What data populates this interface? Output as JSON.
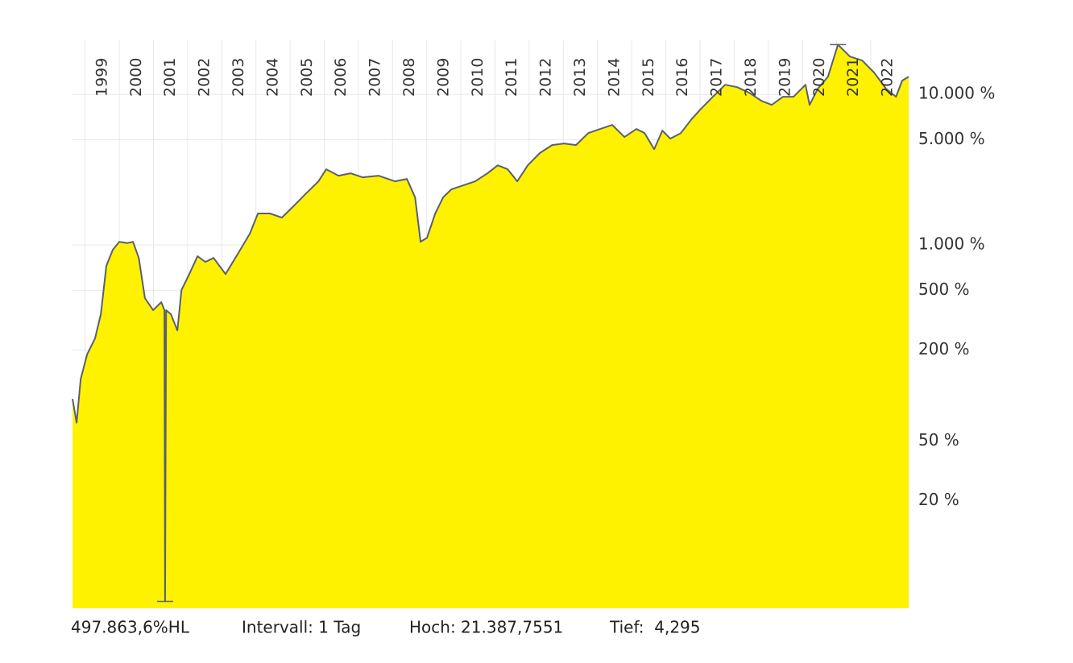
{
  "chart_data": {
    "type": "area",
    "ylog": true,
    "grid": true,
    "color": "#fff200",
    "line_color": "#596070",
    "x": [
      1998.63,
      1998.75,
      1998.87,
      1999.06,
      1999.29,
      1999.46,
      1999.62,
      1999.81,
      2000.0,
      2000.24,
      2000.4,
      2000.57,
      2000.75,
      2000.99,
      2001.23,
      2001.32,
      2001.34,
      2001.37,
      2001.51,
      2001.7,
      2001.82,
      2002.05,
      2002.29,
      2002.52,
      2002.76,
      2003.11,
      2003.47,
      2003.82,
      2004.06,
      2004.41,
      2004.76,
      2005.12,
      2005.47,
      2005.83,
      2006.06,
      2006.42,
      2006.77,
      2007.12,
      2007.59,
      2008.07,
      2008.42,
      2008.66,
      2008.82,
      2009.01,
      2009.25,
      2009.48,
      2009.72,
      2010.07,
      2010.42,
      2010.78,
      2011.08,
      2011.37,
      2011.65,
      2011.96,
      2012.31,
      2012.67,
      2013.02,
      2013.37,
      2013.73,
      2014.08,
      2014.43,
      2014.79,
      2015.14,
      2015.38,
      2015.66,
      2015.9,
      2016.13,
      2016.44,
      2016.75,
      2017.03,
      2017.38,
      2017.74,
      2018.09,
      2018.44,
      2018.8,
      2019.1,
      2019.43,
      2019.74,
      2020.09,
      2020.21,
      2020.45,
      2020.75,
      2021.04,
      2021.39,
      2021.75,
      2022.1,
      2022.45,
      2022.74,
      2022.92,
      2023.11
    ],
    "values": [
      95,
      66,
      129,
      188,
      240,
      347,
      726,
      929,
      1050,
      1030,
      1050,
      820,
      444,
      369,
      417,
      369,
      4.295,
      369,
      347,
      271,
      502,
      641,
      841,
      772,
      820,
      641,
      873,
      1188,
      1618,
      1618,
      1520,
      1828,
      2198,
      2644,
      3184,
      2884,
      2992,
      2812,
      2884,
      2644,
      2745,
      2070,
      1050,
      1117,
      1618,
      2070,
      2339,
      2488,
      2644,
      2992,
      3381,
      3184,
      2644,
      3381,
      4074,
      4603,
      4721,
      4603,
      5535,
      5888,
      6266,
      5210,
      5888,
      5535,
      4325,
      5745,
      5082,
      5535,
      6823,
      8017,
      9638,
      11587,
      11170,
      10256,
      9057,
      8511,
      9638,
      9638,
      11587,
      8511,
      10890,
      13120,
      21387.7551,
      17830,
      16790,
      13930,
      10890,
      9638,
      12330,
      13120
    ],
    "xlim": [
      1998.63,
      2023.11
    ],
    "xticks": [
      1999,
      2000,
      2001,
      2002,
      2003,
      2004,
      2005,
      2006,
      2007,
      2008,
      2009,
      2010,
      2011,
      2012,
      2013,
      2014,
      2015,
      2016,
      2017,
      2018,
      2019,
      2020,
      2021,
      2022
    ],
    "ylim": [
      3.87,
      21500
    ],
    "yticks": [
      {
        "value": 10000,
        "label": "10.000 %"
      },
      {
        "value": 5000,
        "label": "5.000 %"
      },
      {
        "value": 1000,
        "label": "1.000 %"
      },
      {
        "value": 500,
        "label": "500 %"
      },
      {
        "value": 200,
        "label": "200 %"
      },
      {
        "value": 50,
        "label": "50 %"
      },
      {
        "value": 20,
        "label": "20 %"
      }
    ],
    "footer": [
      "497.863,6%HL",
      "Intervall: 1 Tag",
      "Hoch: 21.387,7551",
      "Tief:  4,295"
    ]
  }
}
